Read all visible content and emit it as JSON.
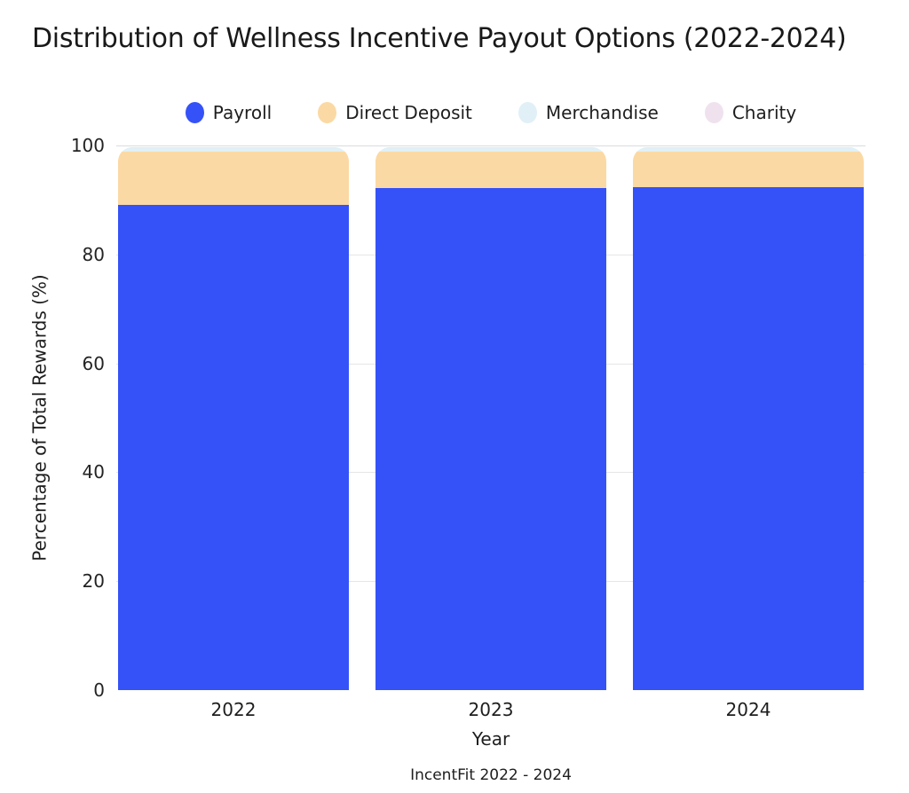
{
  "title": "Distribution of Wellness Incentive Payout Options (2022-2024)",
  "caption": "IncentFit 2022 - 2024",
  "colors": {
    "payroll": "#3552F8",
    "direct_deposit": "#FBD9A4",
    "merchandise": "#E0F0F6",
    "charity": "#EFE2EE",
    "gridline": "#E6E6E6",
    "top_gridline": "#D9DCDE",
    "text": "#1E1E1E",
    "background": "#FFFFFF"
  },
  "chart_data": {
    "type": "bar",
    "stacked": true,
    "title": "Distribution of Wellness Incentive Payout Options (2022-2024)",
    "xlabel": "Year",
    "ylabel": "Percentage of Total Rewards (%)",
    "caption": "IncentFit 2022 - 2024",
    "categories": [
      "2022",
      "2023",
      "2024"
    ],
    "series": [
      {
        "name": "Payroll",
        "color": "#3552F8",
        "values": [
          89.0,
          92.2,
          92.4
        ]
      },
      {
        "name": "Direct Deposit",
        "color": "#FBD9A4",
        "values": [
          9.9,
          6.7,
          6.5
        ]
      },
      {
        "name": "Merchandise",
        "color": "#E0F0F6",
        "values": [
          0.6,
          0.6,
          0.6
        ]
      },
      {
        "name": "Charity",
        "color": "#EFE2EE",
        "values": [
          0.2,
          0.2,
          0.2
        ]
      }
    ],
    "ylim": [
      0,
      100
    ],
    "yticks": [
      0,
      20,
      40,
      60,
      80,
      100
    ],
    "grid": true,
    "legend_position": "top"
  }
}
